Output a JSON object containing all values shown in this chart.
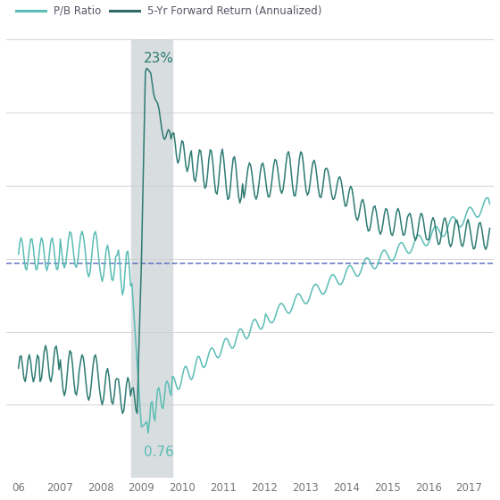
{
  "legend_labels": [
    "P/B Ratio",
    "5-Yr Forward Return (Annualized)"
  ],
  "pb_color": "#5bbdb5",
  "forward_color": "#2d7b72",
  "pb_legend_color": "#5bbdb5",
  "fwd_legend_color": "#2e6b66",
  "dashed_color": "#5566bb",
  "shaded_region_start": 2008.75,
  "shaded_region_end": 2009.75,
  "shaded_color": "#d8dde0",
  "annotation_23_text": "23%",
  "annotation_076_text": "0.76",
  "xmin": 2005.7,
  "xmax": 2017.6,
  "ymin": -22,
  "ymax": 26,
  "dashed_y": 1.5,
  "grid_color": "#cccccc",
  "tick_color": "#777777",
  "label_color": "#555566",
  "figsize": [
    5.6,
    5.6
  ],
  "dpi": 100
}
